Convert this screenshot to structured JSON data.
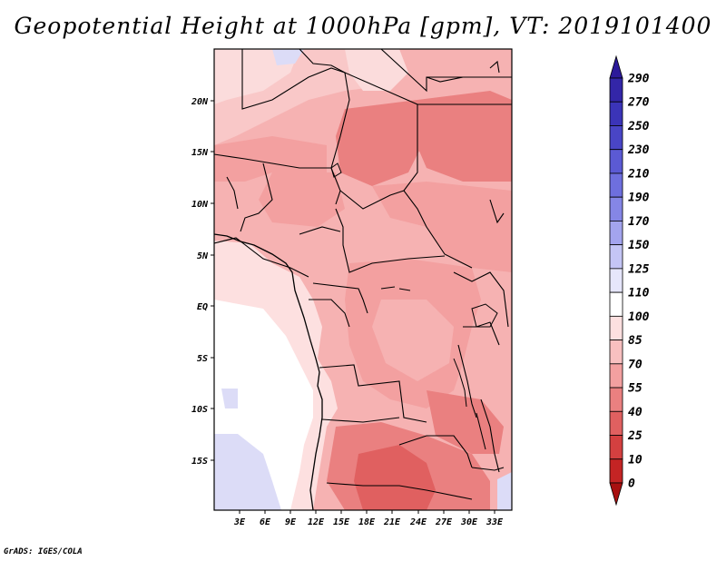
{
  "title": "Geopotential Height at 1000hPa [gpm], VT: 2019101400",
  "credit": "GrADS: IGES/COLA",
  "map": {
    "lat_ticks": [
      "20N",
      "15N",
      "10N",
      "5N",
      "EQ",
      "5S",
      "10S",
      "15S"
    ],
    "lon_ticks": [
      "3E",
      "6E",
      "9E",
      "12E",
      "15E",
      "18E",
      "21E",
      "24E",
      "27E",
      "30E",
      "33E"
    ]
  },
  "colorbar": {
    "levels": [
      "290",
      "270",
      "250",
      "230",
      "210",
      "190",
      "170",
      "150",
      "125",
      "110",
      "100",
      "85",
      "70",
      "55",
      "40",
      "25",
      "10",
      "0"
    ],
    "colors": [
      "#2c1a9a",
      "#3326a8",
      "#3b34b8",
      "#4945c6",
      "#5b5ad4",
      "#6e6fde",
      "#8586e6",
      "#a3a4ee",
      "#c4c5f5",
      "#e6e6fb",
      "#ffffff",
      "#fde0e0",
      "#f8c0c0",
      "#f3a0a0",
      "#ea8080",
      "#e06060",
      "#d44040",
      "#c42424",
      "#a81010"
    ]
  }
}
